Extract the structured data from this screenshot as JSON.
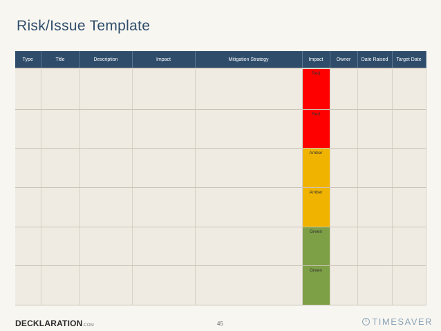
{
  "title": "Risk/Issue Template",
  "table": {
    "headers": [
      "Type",
      "Title",
      "Description",
      "Impact",
      "Mitigation Strategy",
      "Impact",
      "Owner",
      "Date Raised",
      "Target Date"
    ],
    "rows": [
      {
        "status": "Red",
        "color": "#ff0000"
      },
      {
        "status": "Red",
        "color": "#ff0000"
      },
      {
        "status": "Amber",
        "color": "#f0b400"
      },
      {
        "status": "Amber",
        "color": "#f0b400"
      },
      {
        "status": "Green",
        "color": "#7d9f46"
      },
      {
        "status": "Green",
        "color": "#7d9f46"
      }
    ]
  },
  "footer": {
    "logo": "DECKLARATION",
    "logo_suffix": ".COM",
    "page_number": "45",
    "brand": "TIMESAVER"
  }
}
